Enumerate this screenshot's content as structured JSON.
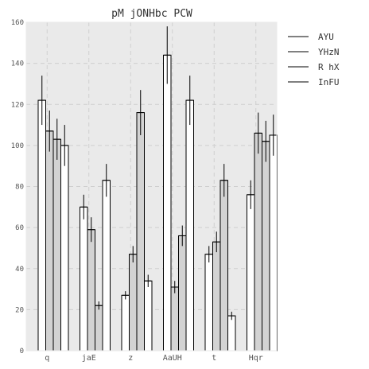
{
  "chart_data": {
    "type": "bar",
    "title": "pM jONHbc PCW",
    "xlabel": "",
    "ylabel": "",
    "categories": [
      "q",
      "jaE",
      "z",
      "AaUH",
      "t",
      "Hqr"
    ],
    "ylim": [
      0,
      160
    ],
    "yticks": [
      0,
      20,
      40,
      60,
      80,
      100,
      120,
      140,
      160
    ],
    "grid": true,
    "legend_position": "right",
    "series": [
      {
        "name": "AYU",
        "fill": "#ffffff",
        "values": [
          122,
          70,
          27,
          144,
          47,
          76
        ],
        "errors": [
          12,
          6,
          2,
          14,
          4,
          7
        ]
      },
      {
        "name": "YHzN",
        "fill": "#d3d3d3",
        "values": [
          107,
          59,
          47,
          31,
          53,
          106
        ],
        "errors": [
          10,
          6,
          4,
          3,
          5,
          10
        ]
      },
      {
        "name": "R hX",
        "fill": "#d3d3d3",
        "values": [
          103,
          22,
          116,
          56,
          83,
          102
        ],
        "errors": [
          10,
          2,
          11,
          5,
          8,
          10
        ]
      },
      {
        "name": "InFU",
        "fill": "#ffffff",
        "values": [
          100,
          83,
          34,
          122,
          17,
          105
        ],
        "errors": [
          10,
          8,
          3,
          12,
          2,
          10
        ]
      }
    ]
  }
}
